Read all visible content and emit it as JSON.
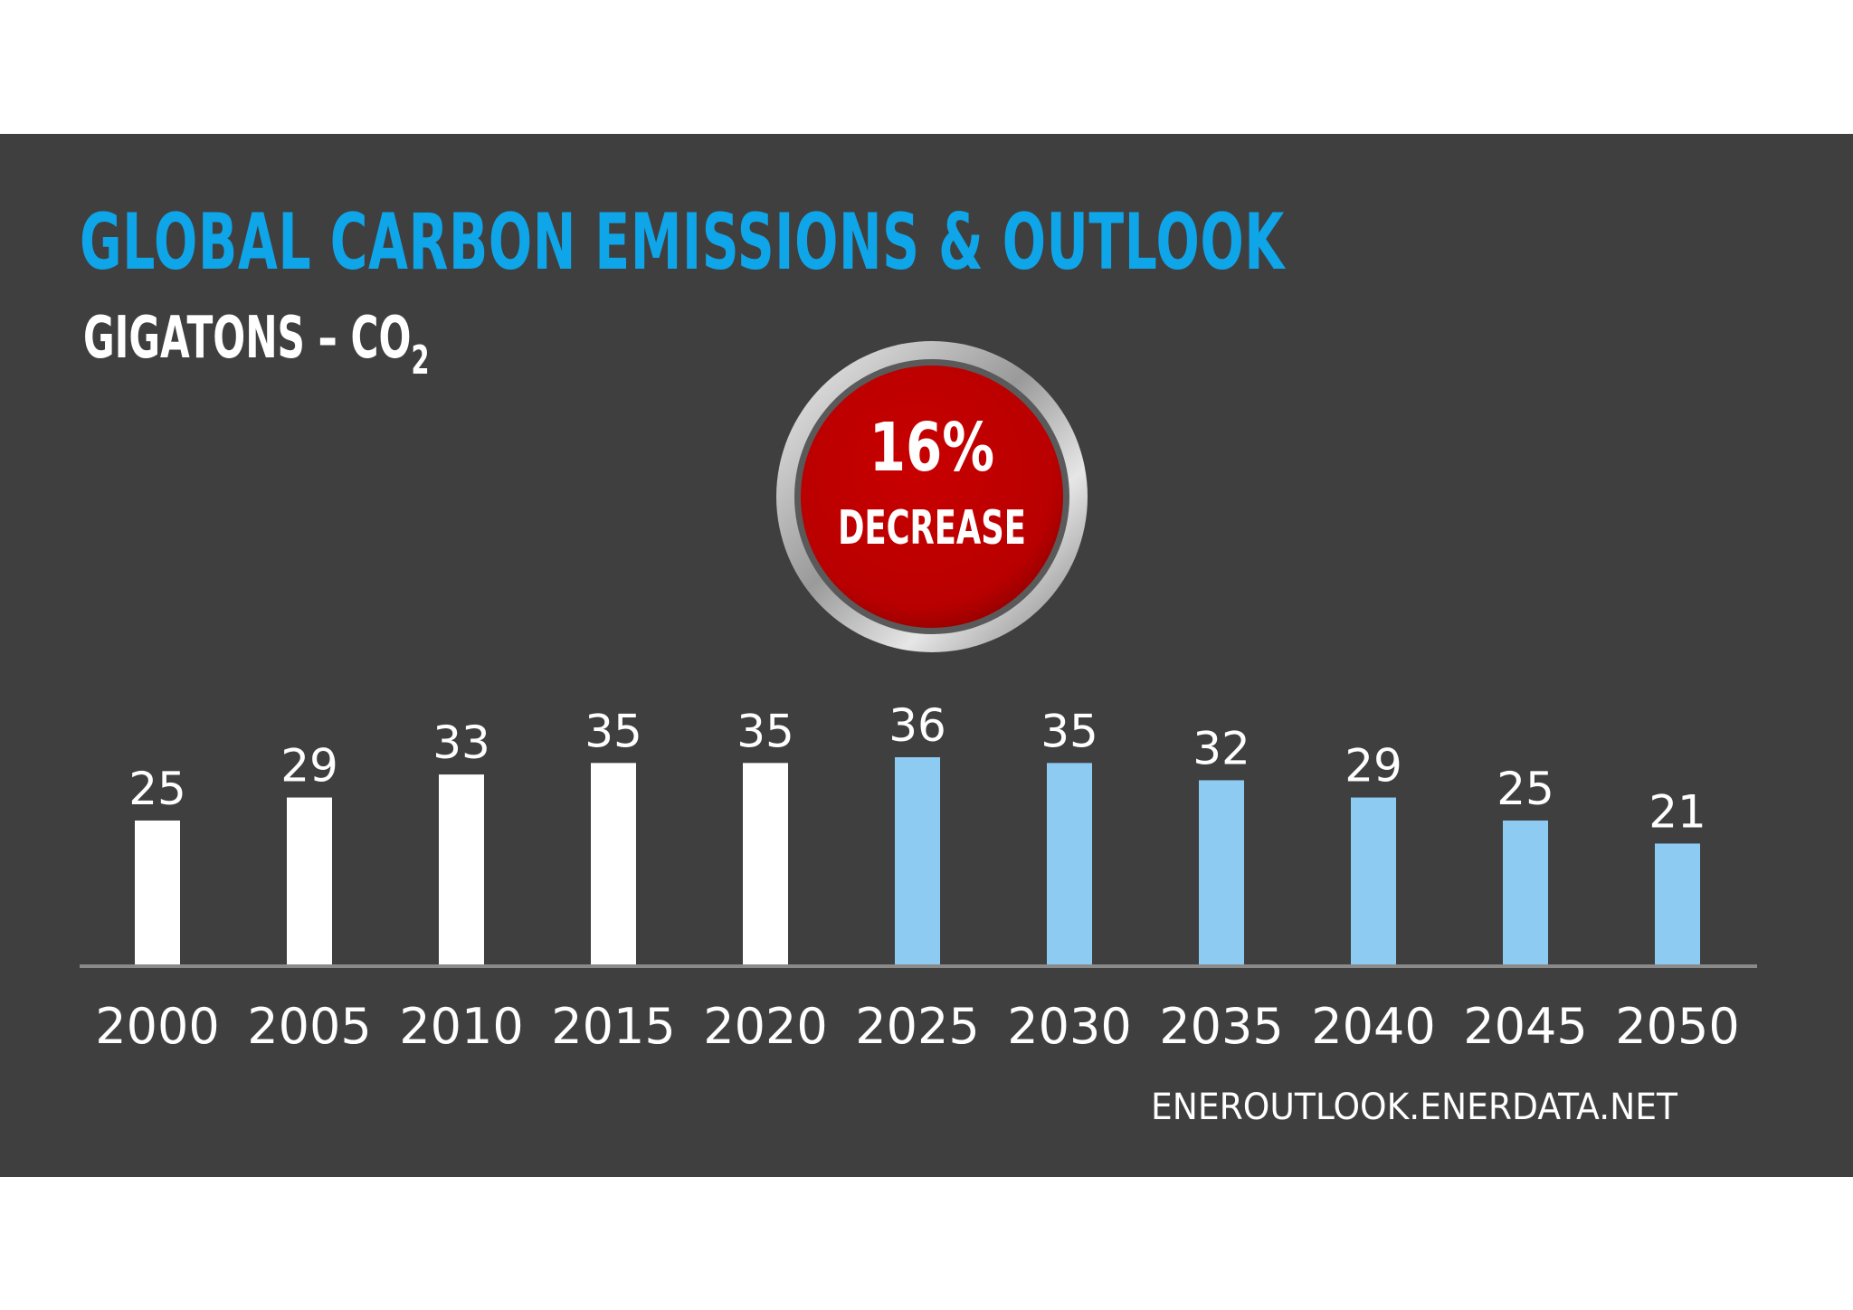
{
  "chart_data": {
    "type": "bar",
    "title": "GLOBAL CARBON EMISSIONS & OUTLOOK",
    "subtitle": "GIGATONS – CO",
    "subtitle_subscript": "2",
    "categories": [
      "2000",
      "2005",
      "2010",
      "2015",
      "2020",
      "2025",
      "2030",
      "2035",
      "2040",
      "2045",
      "2050"
    ],
    "values": [
      25,
      29,
      33,
      35,
      35,
      36,
      35,
      32,
      29,
      25,
      21
    ],
    "bar_colors": [
      "#ffffff",
      "#ffffff",
      "#ffffff",
      "#ffffff",
      "#ffffff",
      "#8ecbf3",
      "#8ecbf3",
      "#8ecbf3",
      "#8ecbf3",
      "#8ecbf3",
      "#8ecbf3"
    ],
    "ylim": [
      0,
      36
    ],
    "xlabel": "",
    "ylabel": "",
    "grid": false,
    "annotation": {
      "value": "16%",
      "label": "DECREASE",
      "fill": "#c00000"
    },
    "source": "ENEROUTLOOK.ENERDATA.NET"
  },
  "colors": {
    "background": "#3f3f3f",
    "title": "#0ea5e9",
    "text": "#ffffff",
    "historic": "#ffffff",
    "outlook": "#8ecbf3",
    "axis": "#8a8a8a"
  }
}
